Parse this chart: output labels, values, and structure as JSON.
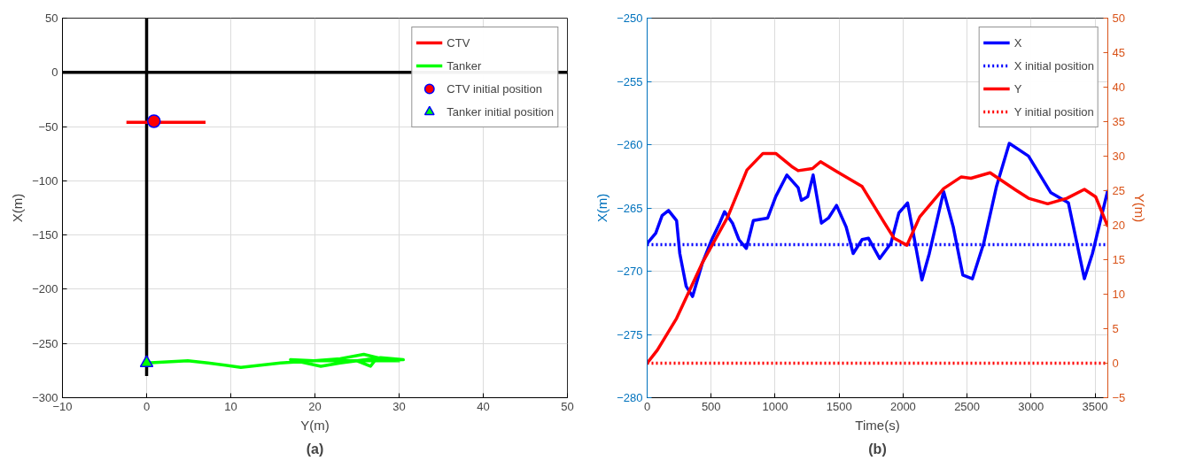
{
  "chart_data": [
    {
      "type": "line",
      "xlabel": "Y(m)",
      "ylabel": "X(m)",
      "xlim": [
        -10,
        50
      ],
      "ylim": [
        -300,
        50
      ],
      "xticks": [
        -10,
        0,
        10,
        20,
        30,
        40,
        50
      ],
      "yticks": [
        -300,
        -250,
        -200,
        -150,
        -100,
        -50,
        0,
        50
      ],
      "grid": true,
      "legend": "top right",
      "annotations": [
        "(a)"
      ],
      "series": [
        {
          "color": "#000000",
          "x": [
            0,
            0
          ],
          "values": [
            50,
            -280
          ]
        },
        {
          "color": "#000000",
          "x": [
            -10,
            50
          ],
          "values": [
            0,
            0
          ]
        },
        {
          "name": "CTV",
          "color": "#ff0000",
          "x": [
            -2.4,
            7
          ],
          "values": [
            -46,
            -46
          ]
        },
        {
          "name": "Tanker",
          "color": "#00ff00",
          "x": [
            0,
            4.9,
            7.3,
            11.2,
            15.9,
            19.9,
            23,
            25.8,
            27.4,
            26.6,
            25,
            30.5,
            27.8,
            23,
            20.7,
            17.1,
            19.9,
            30.1
          ],
          "values": [
            -268,
            -266,
            -268,
            -272,
            -268,
            -266,
            -264,
            -260,
            -263,
            -271,
            -266,
            -265,
            -263,
            -268,
            -271,
            -265,
            -266,
            -266
          ]
        },
        {
          "name": "CTV initial position",
          "type": "scatter",
          "marker": "circle",
          "color": "#ff0000",
          "x": [
            0.87
          ],
          "values": [
            -45
          ]
        },
        {
          "name": "Tanker initial position",
          "type": "scatter",
          "marker": "triangle",
          "color": "#00ff00",
          "x": [
            0
          ],
          "values": [
            -268
          ]
        }
      ]
    },
    {
      "type": "line",
      "xlabel": "Time(s)",
      "ylabel": "X(m)",
      "y2label": "Y(m)",
      "xlim": [
        0,
        3600
      ],
      "ylim": [
        -280,
        -250
      ],
      "y2lim": [
        -5,
        50
      ],
      "xticks": [
        0,
        500,
        1000,
        1500,
        2000,
        2500,
        3000,
        3500
      ],
      "yticks": [
        -280,
        -275,
        -270,
        -265,
        -260,
        -255,
        -250
      ],
      "y2ticks": [
        -5,
        0,
        5,
        10,
        15,
        20,
        25,
        30,
        35,
        40,
        45,
        50
      ],
      "grid": true,
      "legend": "top right",
      "annotations": [
        "(b)"
      ],
      "series": [
        {
          "name": "X",
          "color": "#0000ff",
          "x": [
            0,
            67,
            117,
            167,
            230,
            255,
            305,
            355,
            430,
            505,
            567,
            605,
            667,
            717,
            775,
            830,
            942,
            1005,
            1092,
            1180,
            1205,
            1255,
            1297,
            1362,
            1417,
            1480,
            1555,
            1610,
            1680,
            1730,
            1817,
            1905,
            1967,
            2035,
            2080,
            2147,
            2205,
            2317,
            2392,
            2467,
            2542,
            2630,
            2730,
            2830,
            2980,
            3155,
            3292,
            3417,
            3480,
            3600
          ],
          "values": [
            -267.8,
            -267,
            -265.6,
            -265.2,
            -266,
            -268.6,
            -271.2,
            -272,
            -269.4,
            -267.5,
            -266.2,
            -265.3,
            -266.2,
            -267.5,
            -268.2,
            -266,
            -265.8,
            -264.1,
            -262.4,
            -263.4,
            -264.4,
            -264.1,
            -262.4,
            -266.2,
            -265.8,
            -264.8,
            -266.5,
            -268.6,
            -267.5,
            -267.4,
            -269,
            -267.8,
            -265.4,
            -264.6,
            -267,
            -270.7,
            -268.6,
            -263.7,
            -266.5,
            -270.3,
            -270.6,
            -267.8,
            -263.3,
            -259.9,
            -260.9,
            -263.8,
            -264.6,
            -270.6,
            -268.6,
            -263.6
          ]
        },
        {
          "name": "X initial position",
          "color": "#0000ff",
          "line_style": "dotted",
          "x": [
            0,
            3600
          ],
          "values": [
            -267.9,
            -267.9
          ]
        },
        {
          "name": "Y",
          "color": "#ff0000",
          "axis": "y2",
          "x": [
            0,
            80,
            230,
            430,
            630,
            780,
            905,
            1005,
            1130,
            1180,
            1292,
            1355,
            1480,
            1680,
            1855,
            1930,
            2030,
            2130,
            2317,
            2455,
            2530,
            2680,
            2880,
            2980,
            3130,
            3280,
            3417,
            3505,
            3600
          ],
          "values": [
            0,
            1.9,
            6.5,
            14.5,
            21.2,
            28,
            30.4,
            30.4,
            28.5,
            27.9,
            28.2,
            29.2,
            27.8,
            25.6,
            20.3,
            18.1,
            17.1,
            21.2,
            25.3,
            27,
            26.8,
            27.6,
            25.1,
            23.9,
            23.1,
            23.9,
            25.2,
            24.1,
            19.8
          ]
        },
        {
          "name": "Y initial position",
          "color": "#ff0000",
          "line_style": "dotted",
          "axis": "y2",
          "x": [
            0,
            3600
          ],
          "values": [
            0,
            0
          ]
        }
      ]
    }
  ]
}
